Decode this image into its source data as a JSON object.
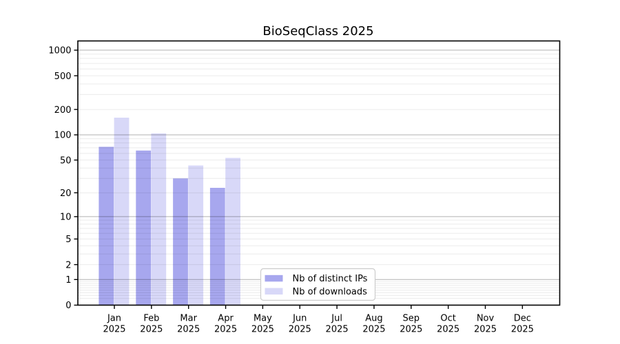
{
  "figure": {
    "background": "#ffffff",
    "text_color": "#000000",
    "spine_color": "#000000",
    "major_grid_color": "rgba(0,0,0,0.30)",
    "minor_grid_color": "rgba(0,0,0,0.08)"
  },
  "chart_data": {
    "type": "bar",
    "title": "BioSeqClass 2025",
    "x_categories": [
      "Jan",
      "Feb",
      "Mar",
      "Apr",
      "May",
      "Jun",
      "Jul",
      "Aug",
      "Sep",
      "Oct",
      "Nov",
      "Dec"
    ],
    "x_year_suffix": "2025",
    "series": [
      {
        "name": "Nb of distinct IPs",
        "color": "#a7a7ee",
        "values": [
          72,
          65,
          30,
          23,
          0,
          0,
          0,
          0,
          0,
          0,
          0,
          0
        ]
      },
      {
        "name": "Nb of downloads",
        "color": "#d8d8f8",
        "values": [
          160,
          104,
          43,
          53,
          0,
          0,
          0,
          0,
          0,
          0,
          0,
          0
        ]
      }
    ],
    "yscale": "log1p",
    "ylim": [
      0,
      1300
    ],
    "y_ticks": [
      0,
      1,
      2,
      5,
      10,
      20,
      50,
      100,
      200,
      500,
      1000
    ],
    "y_major_gridlines": [
      1,
      10,
      100,
      1000
    ],
    "grid": true,
    "legend_position": "lower center-left"
  }
}
